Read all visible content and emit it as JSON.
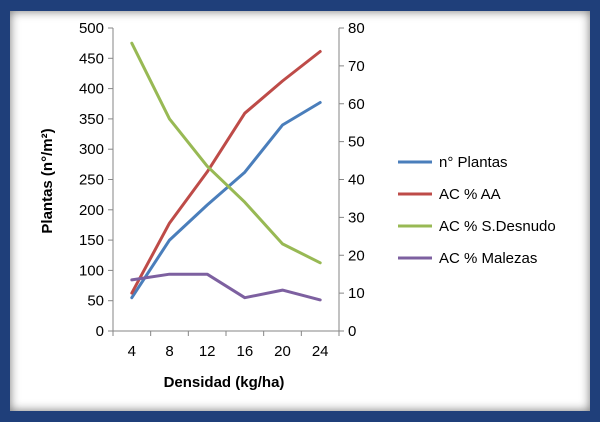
{
  "colors": {
    "frame": "#1f3f7a",
    "background": "#ffffff",
    "plantas": "#4a7ebb",
    "aa": "#be4b48",
    "desnudo": "#98b954",
    "malezas": "#7d60a0"
  },
  "chart_data": {
    "type": "line",
    "title": "",
    "xlabel": "Densidad (kg/ha)",
    "ylabel": "Plantas (n°/m²)",
    "categories": [
      "4",
      "8",
      "12",
      "16",
      "20",
      "24"
    ],
    "ylim_left": [
      0,
      500
    ],
    "ylim_right": [
      0,
      80
    ],
    "yticks_left": [
      "0",
      "50",
      "100",
      "150",
      "200",
      "250",
      "300",
      "350",
      "400",
      "450",
      "500"
    ],
    "yticks_right": [
      "0",
      "10",
      "20",
      "30",
      "40",
      "50",
      "60",
      "70",
      "80"
    ],
    "grid": false,
    "legend_position": "right",
    "series": [
      {
        "name": "n° Plantas",
        "axis": "left",
        "color": "#4a7ebb",
        "values": [
          55,
          150,
          208,
          262,
          340,
          377
        ]
      },
      {
        "name": "AC % AA",
        "axis": "right",
        "color": "#be4b48",
        "values": [
          10,
          28.5,
          42,
          57.5,
          66,
          73.8
        ]
      },
      {
        "name": "AC % S.Desnudo",
        "axis": "right",
        "color": "#98b954",
        "values": [
          76,
          56,
          43.5,
          34,
          23,
          18
        ]
      },
      {
        "name": "AC % Malezas",
        "axis": "right",
        "color": "#7d60a0",
        "values": [
          13.5,
          15,
          15,
          8.8,
          10.8,
          8.2
        ]
      }
    ]
  }
}
